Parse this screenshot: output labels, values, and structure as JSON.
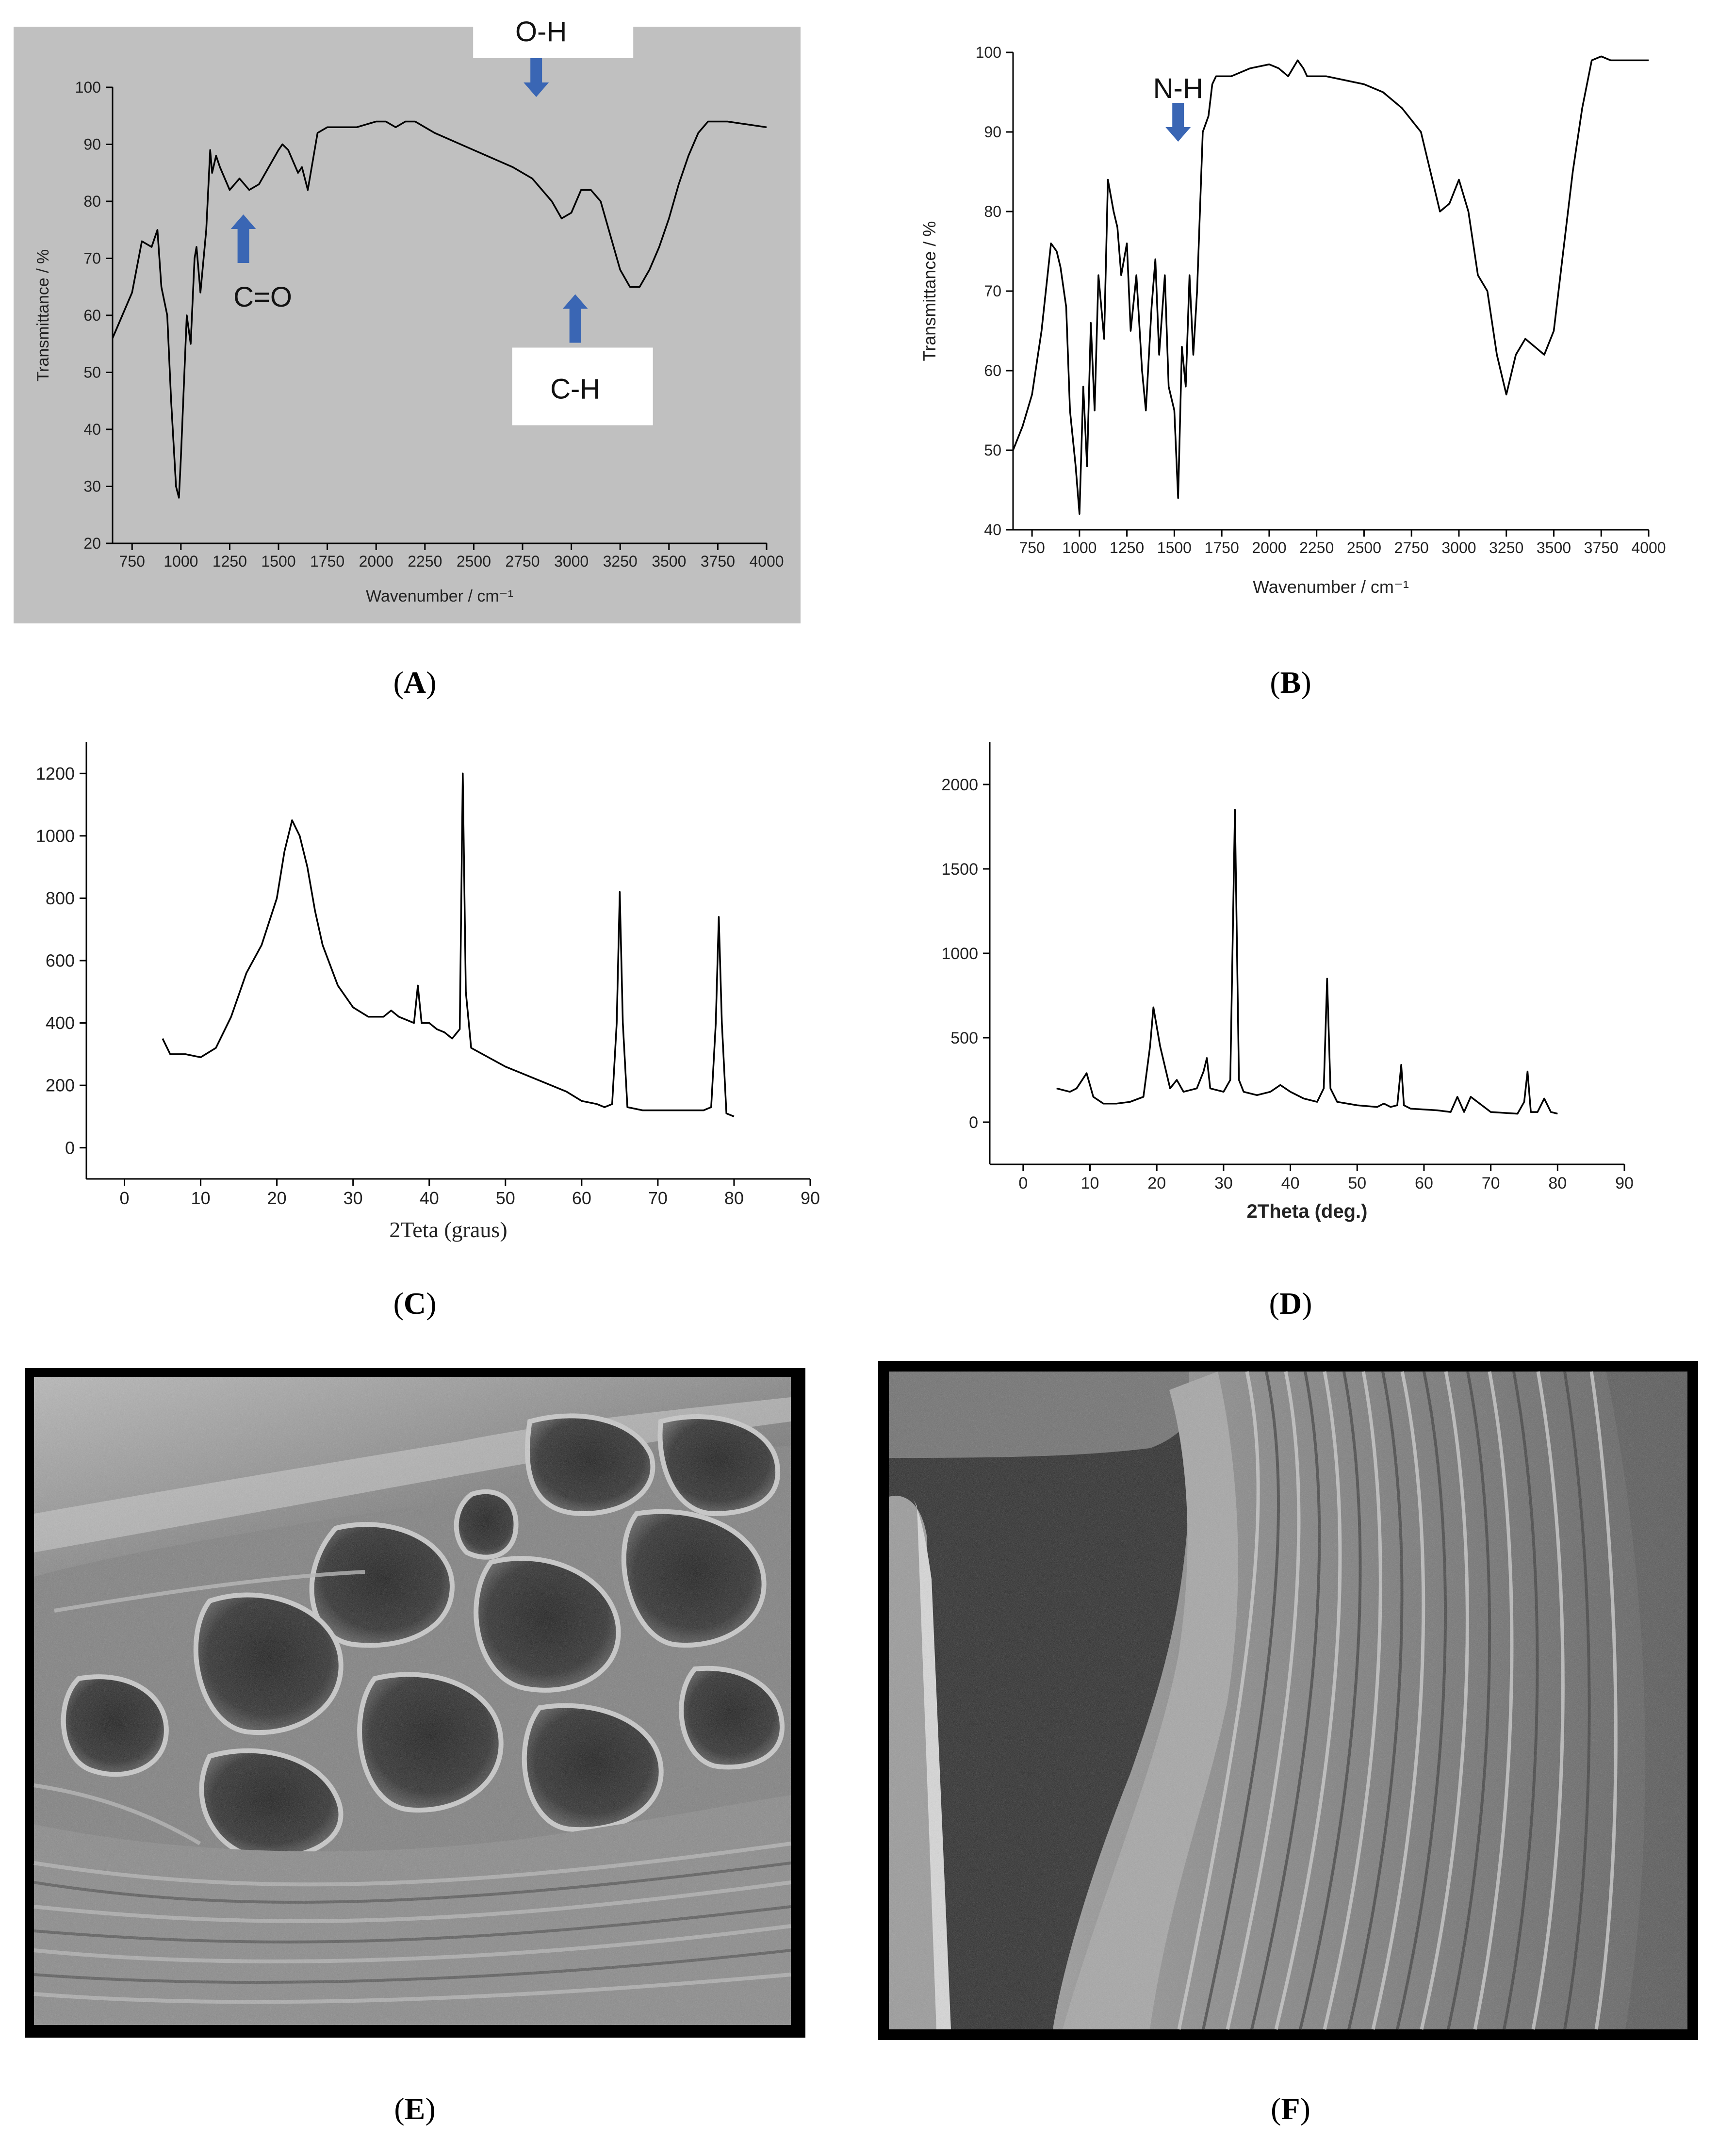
{
  "panels": {
    "A": {
      "label": "A"
    },
    "B": {
      "label": "B"
    },
    "C": {
      "label": "C"
    },
    "D": {
      "label": "D"
    },
    "E": {
      "label": "E"
    },
    "F": {
      "label": "F"
    }
  },
  "colors": {
    "panel_a_bg": "#c0c0c0",
    "arrow": "#3a66b4",
    "line": "#000000"
  },
  "chart_data": [
    {
      "id": "A",
      "type": "line",
      "xlabel": "Wavenumber / cm⁻¹",
      "ylabel": "Transmittance / %",
      "xlim": [
        650,
        4000
      ],
      "ylim": [
        20,
        100
      ],
      "xticks": [
        750,
        1000,
        1250,
        1500,
        1750,
        2000,
        2250,
        2500,
        2750,
        3000,
        3250,
        3500,
        3750,
        4000
      ],
      "yticks": [
        20,
        30,
        40,
        50,
        60,
        70,
        80,
        90,
        100
      ],
      "background": "gray",
      "annotations": [
        {
          "text": "O-H",
          "x": 2820,
          "y": 100,
          "arrow": "down"
        },
        {
          "text": "C=O",
          "x": 1320,
          "y": 76,
          "arrow": "up"
        },
        {
          "text": "C-H",
          "x": 3020,
          "y": 62,
          "arrow": "up"
        }
      ],
      "x": [
        650,
        700,
        750,
        800,
        850,
        880,
        900,
        930,
        950,
        975,
        990,
        1000,
        1030,
        1050,
        1070,
        1080,
        1100,
        1130,
        1150,
        1160,
        1180,
        1200,
        1250,
        1300,
        1350,
        1400,
        1450,
        1500,
        1520,
        1550,
        1600,
        1620,
        1650,
        1700,
        1750,
        1800,
        1900,
        2000,
        2050,
        2100,
        2150,
        2200,
        2300,
        2500,
        2700,
        2800,
        2900,
        2950,
        3000,
        3050,
        3100,
        3150,
        3200,
        3250,
        3300,
        3350,
        3400,
        3450,
        3500,
        3550,
        3600,
        3650,
        3700,
        3800,
        3900,
        4000
      ],
      "y": [
        56,
        60,
        64,
        73,
        72,
        75,
        65,
        60,
        45,
        30,
        28,
        35,
        60,
        55,
        70,
        72,
        64,
        75,
        89,
        85,
        88,
        86,
        82,
        84,
        82,
        83,
        86,
        89,
        90,
        89,
        85,
        86,
        82,
        92,
        93,
        93,
        93,
        94,
        94,
        93,
        94,
        94,
        92,
        89,
        86,
        84,
        80,
        77,
        78,
        82,
        82,
        80,
        74,
        68,
        65,
        65,
        68,
        72,
        77,
        83,
        88,
        92,
        94,
        94,
        93.5,
        93
      ]
    },
    {
      "id": "B",
      "type": "line",
      "xlabel": "Wavenumber / cm⁻¹",
      "ylabel": "Transmittance / %",
      "xlim": [
        650,
        4000
      ],
      "ylim": [
        40,
        100
      ],
      "xticks": [
        750,
        1000,
        1250,
        1500,
        1750,
        2000,
        2250,
        2500,
        2750,
        3000,
        3250,
        3500,
        3750,
        4000
      ],
      "yticks": [
        40,
        50,
        60,
        70,
        80,
        90,
        100
      ],
      "background": "white",
      "annotations": [
        {
          "text": "N-H",
          "x": 1520,
          "y": 90,
          "arrow": "down"
        }
      ],
      "x": [
        650,
        700,
        750,
        800,
        850,
        880,
        900,
        930,
        950,
        980,
        1000,
        1020,
        1040,
        1060,
        1080,
        1100,
        1130,
        1150,
        1180,
        1200,
        1220,
        1250,
        1270,
        1300,
        1330,
        1350,
        1380,
        1400,
        1420,
        1450,
        1470,
        1500,
        1520,
        1540,
        1560,
        1580,
        1600,
        1620,
        1650,
        1680,
        1700,
        1720,
        1800,
        1900,
        2000,
        2050,
        2100,
        2150,
        2180,
        2200,
        2300,
        2400,
        2500,
        2600,
        2700,
        2800,
        2850,
        2900,
        2950,
        3000,
        3050,
        3100,
        3150,
        3200,
        3250,
        3300,
        3350,
        3400,
        3450,
        3500,
        3550,
        3600,
        3650,
        3700,
        3750,
        3800,
        3900,
        4000
      ],
      "y": [
        50,
        53,
        57,
        65,
        76,
        75,
        73,
        68,
        55,
        48,
        42,
        58,
        48,
        66,
        55,
        72,
        64,
        84,
        80,
        78,
        72,
        76,
        65,
        72,
        60,
        55,
        68,
        74,
        62,
        72,
        58,
        55,
        44,
        63,
        58,
        72,
        62,
        70,
        90,
        92,
        96,
        97,
        97,
        98,
        98.5,
        98,
        97,
        99,
        98,
        97,
        97,
        96.5,
        96,
        95,
        93,
        90,
        85,
        80,
        81,
        84,
        80,
        72,
        70,
        62,
        57,
        62,
        64,
        63,
        62,
        65,
        75,
        85,
        93,
        99,
        99.5,
        99,
        99,
        99
      ]
    },
    {
      "id": "C",
      "type": "line",
      "xlabel": "2Teta (graus)",
      "ylabel": "",
      "xlim": [
        -5,
        90
      ],
      "ylim": [
        -100,
        1300
      ],
      "xticks": [
        0,
        10,
        20,
        30,
        40,
        50,
        60,
        70,
        80,
        90
      ],
      "yticks": [
        0,
        200,
        400,
        600,
        800,
        1000,
        1200
      ],
      "background": "white",
      "x": [
        5,
        6,
        8,
        10,
        12,
        14,
        16,
        18,
        20,
        21,
        22,
        23,
        24,
        25,
        26,
        28,
        30,
        32,
        34,
        35,
        36,
        37,
        38,
        38.5,
        39,
        40,
        41,
        42,
        43,
        44,
        44.4,
        44.8,
        45.5,
        47,
        50,
        52,
        54,
        56,
        58,
        60,
        62,
        63,
        64,
        64.6,
        65,
        65.4,
        66,
        68,
        70,
        72,
        74,
        76,
        77,
        77.6,
        78,
        78.4,
        79,
        80
      ],
      "y": [
        350,
        300,
        300,
        290,
        320,
        420,
        560,
        650,
        800,
        950,
        1050,
        1000,
        900,
        760,
        650,
        520,
        450,
        420,
        420,
        440,
        420,
        410,
        400,
        520,
        400,
        400,
        380,
        370,
        350,
        380,
        1200,
        500,
        320,
        300,
        260,
        240,
        220,
        200,
        180,
        150,
        140,
        130,
        140,
        400,
        820,
        400,
        130,
        120,
        120,
        120,
        120,
        120,
        130,
        400,
        740,
        400,
        110,
        100
      ]
    },
    {
      "id": "D",
      "type": "line",
      "xlabel": "2Theta (deg.)",
      "ylabel": "",
      "xlim": [
        -5,
        90
      ],
      "ylim": [
        -250,
        2250
      ],
      "xticks": [
        0,
        10,
        20,
        30,
        40,
        50,
        60,
        70,
        80,
        90
      ],
      "yticks": [
        0,
        500,
        1000,
        1500,
        2000
      ],
      "background": "white",
      "x": [
        5,
        7,
        8,
        9,
        9.5,
        10.5,
        12,
        14,
        16,
        18,
        19,
        19.5,
        20.5,
        22,
        23,
        24,
        26,
        27,
        27.5,
        28,
        30,
        31,
        31.7,
        32.3,
        33,
        35,
        37,
        38.5,
        40,
        42,
        44,
        45,
        45.5,
        46,
        47,
        50,
        53,
        54,
        55,
        56,
        56.6,
        57,
        58,
        62,
        64,
        65,
        66,
        67,
        70,
        74,
        75,
        75.5,
        76,
        77,
        78,
        79,
        80
      ],
      "y": [
        200,
        180,
        200,
        260,
        290,
        150,
        110,
        110,
        120,
        150,
        450,
        680,
        450,
        200,
        250,
        180,
        200,
        300,
        380,
        200,
        180,
        250,
        1850,
        250,
        180,
        160,
        180,
        220,
        180,
        140,
        120,
        200,
        850,
        200,
        120,
        100,
        90,
        110,
        90,
        100,
        340,
        100,
        80,
        70,
        60,
        150,
        60,
        150,
        60,
        50,
        120,
        300,
        60,
        60,
        140,
        60,
        50
      ]
    }
  ]
}
